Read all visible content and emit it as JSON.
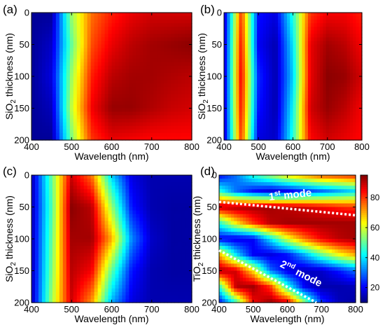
{
  "figure": {
    "panels": [
      {
        "id": "a",
        "label": "(a)"
      },
      {
        "id": "b",
        "label": "(b)"
      },
      {
        "id": "c",
        "label": "(c)"
      },
      {
        "id": "d",
        "label": "(d)"
      }
    ]
  },
  "chart_data": [
    {
      "panel": "(a)",
      "type": "heatmap",
      "xlabel": "Wavelength (nm)",
      "ylabel": "SiO2 thickness (nm)",
      "ylabel_main": "SiO",
      "ylabel_sub": "2",
      "ylabel_rest": " thickness (nm)",
      "xlim": [
        400,
        800
      ],
      "ylim": [
        0,
        200
      ],
      "y_reversed": true,
      "xticks": [
        400,
        500,
        600,
        700,
        800
      ],
      "yticks": [
        0,
        50,
        100,
        150,
        200
      ],
      "colorbar_range": [
        10,
        95
      ],
      "x_samples": [
        400,
        450,
        500,
        550,
        600,
        650,
        700,
        750,
        800
      ],
      "y_samples": [
        0,
        50,
        100,
        150,
        200
      ],
      "values": [
        [
          12,
          12,
          55,
          75,
          82,
          86,
          88,
          88,
          88
        ],
        [
          12,
          16,
          50,
          78,
          86,
          90,
          92,
          93,
          94
        ],
        [
          12,
          18,
          55,
          82,
          90,
          92,
          92,
          91,
          90
        ],
        [
          12,
          15,
          58,
          85,
          93,
          93,
          91,
          89,
          88
        ],
        [
          12,
          12,
          52,
          80,
          86,
          85,
          84,
          84,
          84
        ]
      ]
    },
    {
      "panel": "(b)",
      "type": "heatmap",
      "xlabel": "Wavelength (nm)",
      "ylabel": "SiO2 thickness (nm)",
      "ylabel_main": "SiO",
      "ylabel_sub": "2",
      "ylabel_rest": " thickness (nm)",
      "xlim": [
        400,
        800
      ],
      "ylim": [
        0,
        200
      ],
      "y_reversed": true,
      "xticks": [
        400,
        500,
        600,
        700,
        800
      ],
      "yticks": [
        0,
        50,
        100,
        150,
        200
      ],
      "colorbar_range": [
        10,
        95
      ],
      "x_samples": [
        400,
        450,
        500,
        550,
        600,
        650,
        700,
        750,
        800
      ],
      "y_samples": [
        0,
        50,
        100,
        150,
        200
      ],
      "values": [
        [
          15,
          80,
          22,
          18,
          45,
          80,
          85,
          85,
          82
        ],
        [
          15,
          84,
          20,
          14,
          40,
          86,
          92,
          90,
          85
        ],
        [
          15,
          86,
          24,
          14,
          38,
          86,
          94,
          93,
          88
        ],
        [
          15,
          84,
          22,
          14,
          42,
          88,
          93,
          90,
          85
        ],
        [
          15,
          80,
          18,
          16,
          45,
          84,
          88,
          86,
          84
        ]
      ]
    },
    {
      "panel": "(c)",
      "type": "heatmap",
      "xlabel": "Wavelength (nm)",
      "ylabel": "SiO2 thickness (nm)",
      "ylabel_main": "SiO",
      "ylabel_sub": "2",
      "ylabel_rest": " thickness (nm)",
      "xlim": [
        400,
        800
      ],
      "ylim": [
        0,
        200
      ],
      "y_reversed": true,
      "xticks": [
        400,
        500,
        600,
        700,
        800
      ],
      "yticks": [
        0,
        50,
        100,
        150,
        200
      ],
      "colorbar_range": [
        10,
        95
      ],
      "x_samples": [
        400,
        450,
        500,
        550,
        600,
        650,
        700,
        750,
        800
      ],
      "y_samples": [
        0,
        50,
        100,
        150,
        200
      ],
      "values": [
        [
          14,
          50,
          88,
          75,
          38,
          18,
          14,
          14,
          14
        ],
        [
          14,
          48,
          94,
          90,
          55,
          22,
          14,
          13,
          13
        ],
        [
          14,
          50,
          92,
          92,
          70,
          32,
          16,
          13,
          13
        ],
        [
          14,
          52,
          90,
          85,
          50,
          22,
          14,
          13,
          13
        ],
        [
          14,
          55,
          88,
          72,
          35,
          18,
          14,
          14,
          14
        ]
      ]
    },
    {
      "panel": "(d)",
      "type": "heatmap",
      "xlabel": "Wavelength (nm)",
      "ylabel": "TiO2 thickness (nm)",
      "ylabel_main": "TiO",
      "ylabel_sub": "2",
      "ylabel_rest": " thickness (nm)",
      "xlim": [
        400,
        800
      ],
      "ylim": [
        0,
        200
      ],
      "y_reversed": true,
      "xticks": [
        400,
        500,
        600,
        700,
        800
      ],
      "yticks": [
        0,
        50,
        100,
        150,
        200
      ],
      "colorbar_range": [
        10,
        95
      ],
      "colorbar_ticks": [
        20,
        40,
        60,
        80
      ],
      "mode_lines": [
        {
          "label_main": "1",
          "label_sup": "st",
          "label_rest": " mode",
          "x": [
            400,
            800
          ],
          "y": [
            42,
            63
          ]
        },
        {
          "label_main": "2",
          "label_sup": "nd",
          "label_rest": " mode",
          "x": [
            400,
            685
          ],
          "y": [
            118,
            200
          ]
        }
      ],
      "x_samples": [
        400,
        450,
        500,
        550,
        600,
        650,
        700,
        750,
        800
      ],
      "y_samples": [
        0,
        25,
        50,
        75,
        100,
        125,
        150,
        175,
        200
      ],
      "values": [
        [
          20,
          30,
          45,
          55,
          65,
          72,
          78,
          80,
          82
        ],
        [
          45,
          30,
          22,
          18,
          20,
          25,
          30,
          35,
          40
        ],
        [
          90,
          92,
          92,
          92,
          90,
          88,
          85,
          82,
          80
        ],
        [
          45,
          65,
          80,
          90,
          92,
          92,
          92,
          92,
          92
        ],
        [
          20,
          18,
          20,
          40,
          60,
          75,
          85,
          90,
          92
        ],
        [
          70,
          40,
          20,
          18,
          22,
          35,
          50,
          62,
          70
        ],
        [
          92,
          88,
          65,
          30,
          18,
          15,
          16,
          22,
          30
        ],
        [
          45,
          90,
          92,
          80,
          45,
          20,
          14,
          14,
          15
        ],
        [
          20,
          45,
          85,
          93,
          88,
          55,
          25,
          15,
          13
        ]
      ]
    }
  ]
}
